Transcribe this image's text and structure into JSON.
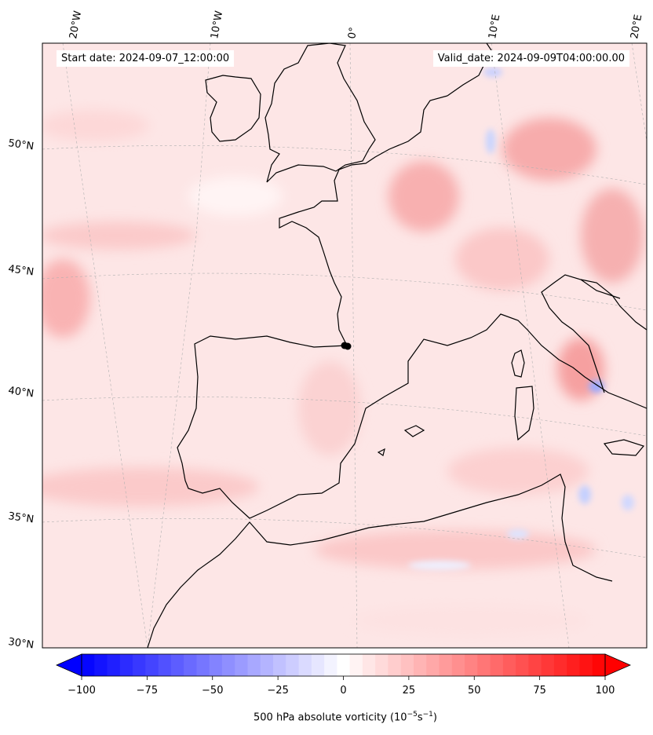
{
  "map": {
    "start_label": "Start date: 2024-09-07_12:00:00",
    "valid_label": "Valid_date: 2024-09-09T04:00:00.00",
    "lon_labels": [
      "20°W",
      "10°W",
      "0°",
      "10°E",
      "20°E"
    ],
    "lat_labels": [
      "50°N",
      "45°N",
      "40°N",
      "35°N",
      "30°N"
    ],
    "colors": {
      "neg": "#0000ff",
      "mid": "#ffffff",
      "pos": "#ff0000",
      "coast": "#000000"
    }
  },
  "colorbar": {
    "title_prefix": "500 hPa absolute vorticity (10",
    "title_exp1": "−5",
    "title_mid": "s",
    "title_exp2": "−1",
    "title_suffix": ")",
    "ticks": [
      -100,
      -75,
      -50,
      -25,
      0,
      25,
      50,
      75,
      100
    ],
    "tick_labels": [
      "−100",
      "−75",
      "−50",
      "−25",
      "0",
      "25",
      "50",
      "75",
      "100"
    ],
    "range": [
      -100,
      100
    ],
    "levels": 41
  }
}
